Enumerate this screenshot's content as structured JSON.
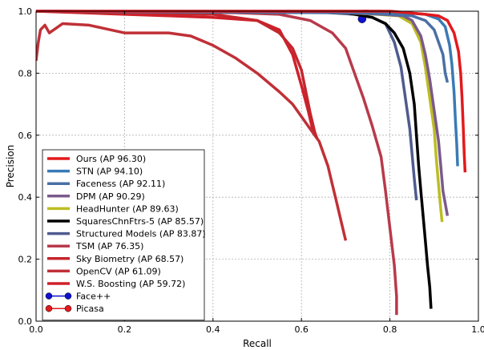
{
  "chart_data": {
    "type": "line",
    "xlabel": "Recall",
    "ylabel": "Precision",
    "xlim": [
      0.0,
      1.0
    ],
    "ylim": [
      0.0,
      1.0
    ],
    "xticks": [
      "0.0",
      "0.2",
      "0.4",
      "0.6",
      "0.8",
      "1.0"
    ],
    "yticks": [
      "0.0",
      "0.2",
      "0.4",
      "0.6",
      "0.8",
      "1.0"
    ],
    "grid": true,
    "legend_position": "lower-left",
    "series": [
      {
        "name": "Ours (AP 96.30)",
        "color": "#e3191c",
        "marker": "none",
        "points": [
          [
            0,
            1
          ],
          [
            0.8,
            1
          ],
          [
            0.84,
            0.995
          ],
          [
            0.88,
            0.99
          ],
          [
            0.91,
            0.985
          ],
          [
            0.93,
            0.97
          ],
          [
            0.945,
            0.93
          ],
          [
            0.955,
            0.87
          ],
          [
            0.96,
            0.8
          ],
          [
            0.963,
            0.72
          ],
          [
            0.966,
            0.62
          ],
          [
            0.968,
            0.54
          ],
          [
            0.97,
            0.48
          ]
        ]
      },
      {
        "name": "STN (AP 94.10)",
        "color": "#3a7ab5",
        "marker": "none",
        "points": [
          [
            0,
            1
          ],
          [
            0.78,
            1
          ],
          [
            0.83,
            0.995
          ],
          [
            0.88,
            0.99
          ],
          [
            0.91,
            0.975
          ],
          [
            0.925,
            0.95
          ],
          [
            0.935,
            0.89
          ],
          [
            0.94,
            0.83
          ],
          [
            0.945,
            0.74
          ],
          [
            0.948,
            0.65
          ],
          [
            0.951,
            0.57
          ],
          [
            0.953,
            0.5
          ]
        ]
      },
      {
        "name": "Faceness (AP 92.11)",
        "color": "#4a6fa5",
        "marker": "none",
        "points": [
          [
            0,
            1
          ],
          [
            0.72,
            0.995
          ],
          [
            0.8,
            0.99
          ],
          [
            0.85,
            0.985
          ],
          [
            0.88,
            0.97
          ],
          [
            0.9,
            0.94
          ],
          [
            0.91,
            0.9
          ],
          [
            0.92,
            0.86
          ],
          [
            0.925,
            0.8
          ],
          [
            0.93,
            0.77
          ]
        ]
      },
      {
        "name": "DPM (AP 90.29)",
        "color": "#7a5a8c",
        "marker": "none",
        "points": [
          [
            0,
            1
          ],
          [
            0.7,
            0.995
          ],
          [
            0.78,
            0.99
          ],
          [
            0.83,
            0.985
          ],
          [
            0.85,
            0.97
          ],
          [
            0.87,
            0.92
          ],
          [
            0.88,
            0.86
          ],
          [
            0.89,
            0.78
          ],
          [
            0.9,
            0.68
          ],
          [
            0.91,
            0.58
          ],
          [
            0.915,
            0.5
          ],
          [
            0.92,
            0.42
          ],
          [
            0.925,
            0.38
          ],
          [
            0.93,
            0.34
          ]
        ]
      },
      {
        "name": "HeadHunter (AP 89.63)",
        "color": "#bcbd22",
        "marker": "none",
        "points": [
          [
            0,
            1
          ],
          [
            0.7,
            0.995
          ],
          [
            0.77,
            0.99
          ],
          [
            0.82,
            0.985
          ],
          [
            0.85,
            0.96
          ],
          [
            0.87,
            0.9
          ],
          [
            0.88,
            0.82
          ],
          [
            0.89,
            0.72
          ],
          [
            0.9,
            0.62
          ],
          [
            0.905,
            0.52
          ],
          [
            0.91,
            0.44
          ],
          [
            0.915,
            0.36
          ],
          [
            0.918,
            0.32
          ]
        ]
      },
      {
        "name": "SquaresChnFtrs-5 (AP 85.57)",
        "color": "#000000",
        "marker": "none",
        "points": [
          [
            0,
            1
          ],
          [
            0.7,
            0.995
          ],
          [
            0.76,
            0.98
          ],
          [
            0.79,
            0.96
          ],
          [
            0.81,
            0.93
          ],
          [
            0.83,
            0.88
          ],
          [
            0.845,
            0.8
          ],
          [
            0.855,
            0.7
          ],
          [
            0.86,
            0.6
          ],
          [
            0.865,
            0.5
          ],
          [
            0.87,
            0.42
          ],
          [
            0.875,
            0.34
          ],
          [
            0.88,
            0.26
          ],
          [
            0.885,
            0.18
          ],
          [
            0.89,
            0.11
          ],
          [
            0.893,
            0.04
          ]
        ]
      },
      {
        "name": "Structured Models (AP 83.87)",
        "color": "#4f5b8f",
        "marker": "none",
        "points": [
          [
            0,
            1
          ],
          [
            0.66,
            0.995
          ],
          [
            0.72,
            0.99
          ],
          [
            0.76,
            0.98
          ],
          [
            0.79,
            0.96
          ],
          [
            0.81,
            0.9
          ],
          [
            0.825,
            0.82
          ],
          [
            0.835,
            0.72
          ],
          [
            0.845,
            0.62
          ],
          [
            0.85,
            0.54
          ],
          [
            0.855,
            0.46
          ],
          [
            0.86,
            0.39
          ]
        ]
      },
      {
        "name": "TSM (AP 76.35)",
        "color": "#b83a4b",
        "marker": "none",
        "points": [
          [
            0,
            1
          ],
          [
            0.45,
            0.995
          ],
          [
            0.55,
            0.99
          ],
          [
            0.62,
            0.97
          ],
          [
            0.67,
            0.93
          ],
          [
            0.7,
            0.88
          ],
          [
            0.72,
            0.8
          ],
          [
            0.74,
            0.72
          ],
          [
            0.76,
            0.63
          ],
          [
            0.78,
            0.53
          ],
          [
            0.79,
            0.42
          ],
          [
            0.8,
            0.3
          ],
          [
            0.81,
            0.18
          ],
          [
            0.815,
            0.08
          ],
          [
            0.815,
            0.02
          ]
        ]
      },
      {
        "name": "Sky Biometry (AP 68.57)",
        "color": "#c4262e",
        "marker": "none",
        "points": [
          [
            0,
            1
          ],
          [
            0.4,
            0.99
          ],
          [
            0.5,
            0.97
          ],
          [
            0.55,
            0.93
          ],
          [
            0.58,
            0.88
          ],
          [
            0.6,
            0.81
          ],
          [
            0.61,
            0.74
          ],
          [
            0.62,
            0.67
          ],
          [
            0.63,
            0.61
          ],
          [
            0.635,
            0.59
          ]
        ]
      },
      {
        "name": "OpenCV (AP 61.09)",
        "color": "#c03037",
        "marker": "none",
        "points": [
          [
            0,
            0.84
          ],
          [
            0.005,
            0.9
          ],
          [
            0.01,
            0.94
          ],
          [
            0.02,
            0.955
          ],
          [
            0.03,
            0.93
          ],
          [
            0.06,
            0.96
          ],
          [
            0.12,
            0.955
          ],
          [
            0.2,
            0.93
          ],
          [
            0.3,
            0.93
          ],
          [
            0.35,
            0.92
          ],
          [
            0.4,
            0.89
          ],
          [
            0.45,
            0.85
          ],
          [
            0.5,
            0.8
          ],
          [
            0.55,
            0.74
          ],
          [
            0.58,
            0.7
          ],
          [
            0.6,
            0.66
          ],
          [
            0.62,
            0.62
          ],
          [
            0.64,
            0.58
          ],
          [
            0.66,
            0.5
          ],
          [
            0.67,
            0.44
          ],
          [
            0.68,
            0.38
          ],
          [
            0.69,
            0.32
          ],
          [
            0.7,
            0.26
          ]
        ]
      },
      {
        "name": "W.S. Boosting (AP 59.72)",
        "color": "#d0202a",
        "marker": "none",
        "points": [
          [
            0,
            1
          ],
          [
            0.1,
            0.995
          ],
          [
            0.2,
            0.99
          ],
          [
            0.3,
            0.985
          ],
          [
            0.4,
            0.98
          ],
          [
            0.5,
            0.97
          ],
          [
            0.55,
            0.94
          ],
          [
            0.58,
            0.86
          ],
          [
            0.6,
            0.76
          ],
          [
            0.615,
            0.68
          ],
          [
            0.625,
            0.62
          ],
          [
            0.63,
            0.6
          ]
        ]
      },
      {
        "name": "Face++",
        "color": "#1010d0",
        "marker": "circle",
        "points": [
          [
            0,
            1
          ],
          [
            0.737,
            0.975
          ]
        ]
      },
      {
        "name": "Picasa",
        "color": "#e3191c",
        "marker": "circle",
        "points": [
          [
            0,
            1
          ],
          [
            0.745,
            0.995
          ]
        ]
      }
    ]
  }
}
